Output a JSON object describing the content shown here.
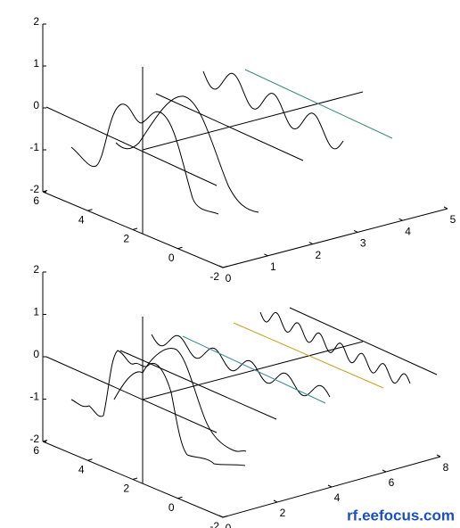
{
  "chart_data": [
    {
      "type": "line3d",
      "xlim": [
        0,
        5
      ],
      "xticks": [
        0,
        1,
        2,
        3,
        4,
        5
      ],
      "ylim": [
        -2,
        6
      ],
      "yticks": [
        -2,
        0,
        2,
        4,
        6
      ],
      "zlim": [
        -2,
        2
      ],
      "zticks": [
        -2,
        -1,
        0,
        1,
        2
      ]
    },
    {
      "type": "line3d",
      "xlim": [
        0,
        8
      ],
      "xticks": [
        0,
        2,
        4,
        6,
        8
      ],
      "ylim": [
        -2,
        6
      ],
      "yticks": [
        -2,
        0,
        2,
        4,
        6
      ],
      "zlim": [
        -2,
        2
      ],
      "zticks": [
        -2,
        -1,
        0,
        1,
        2
      ]
    }
  ],
  "watermark": "rf.eefocus.com"
}
